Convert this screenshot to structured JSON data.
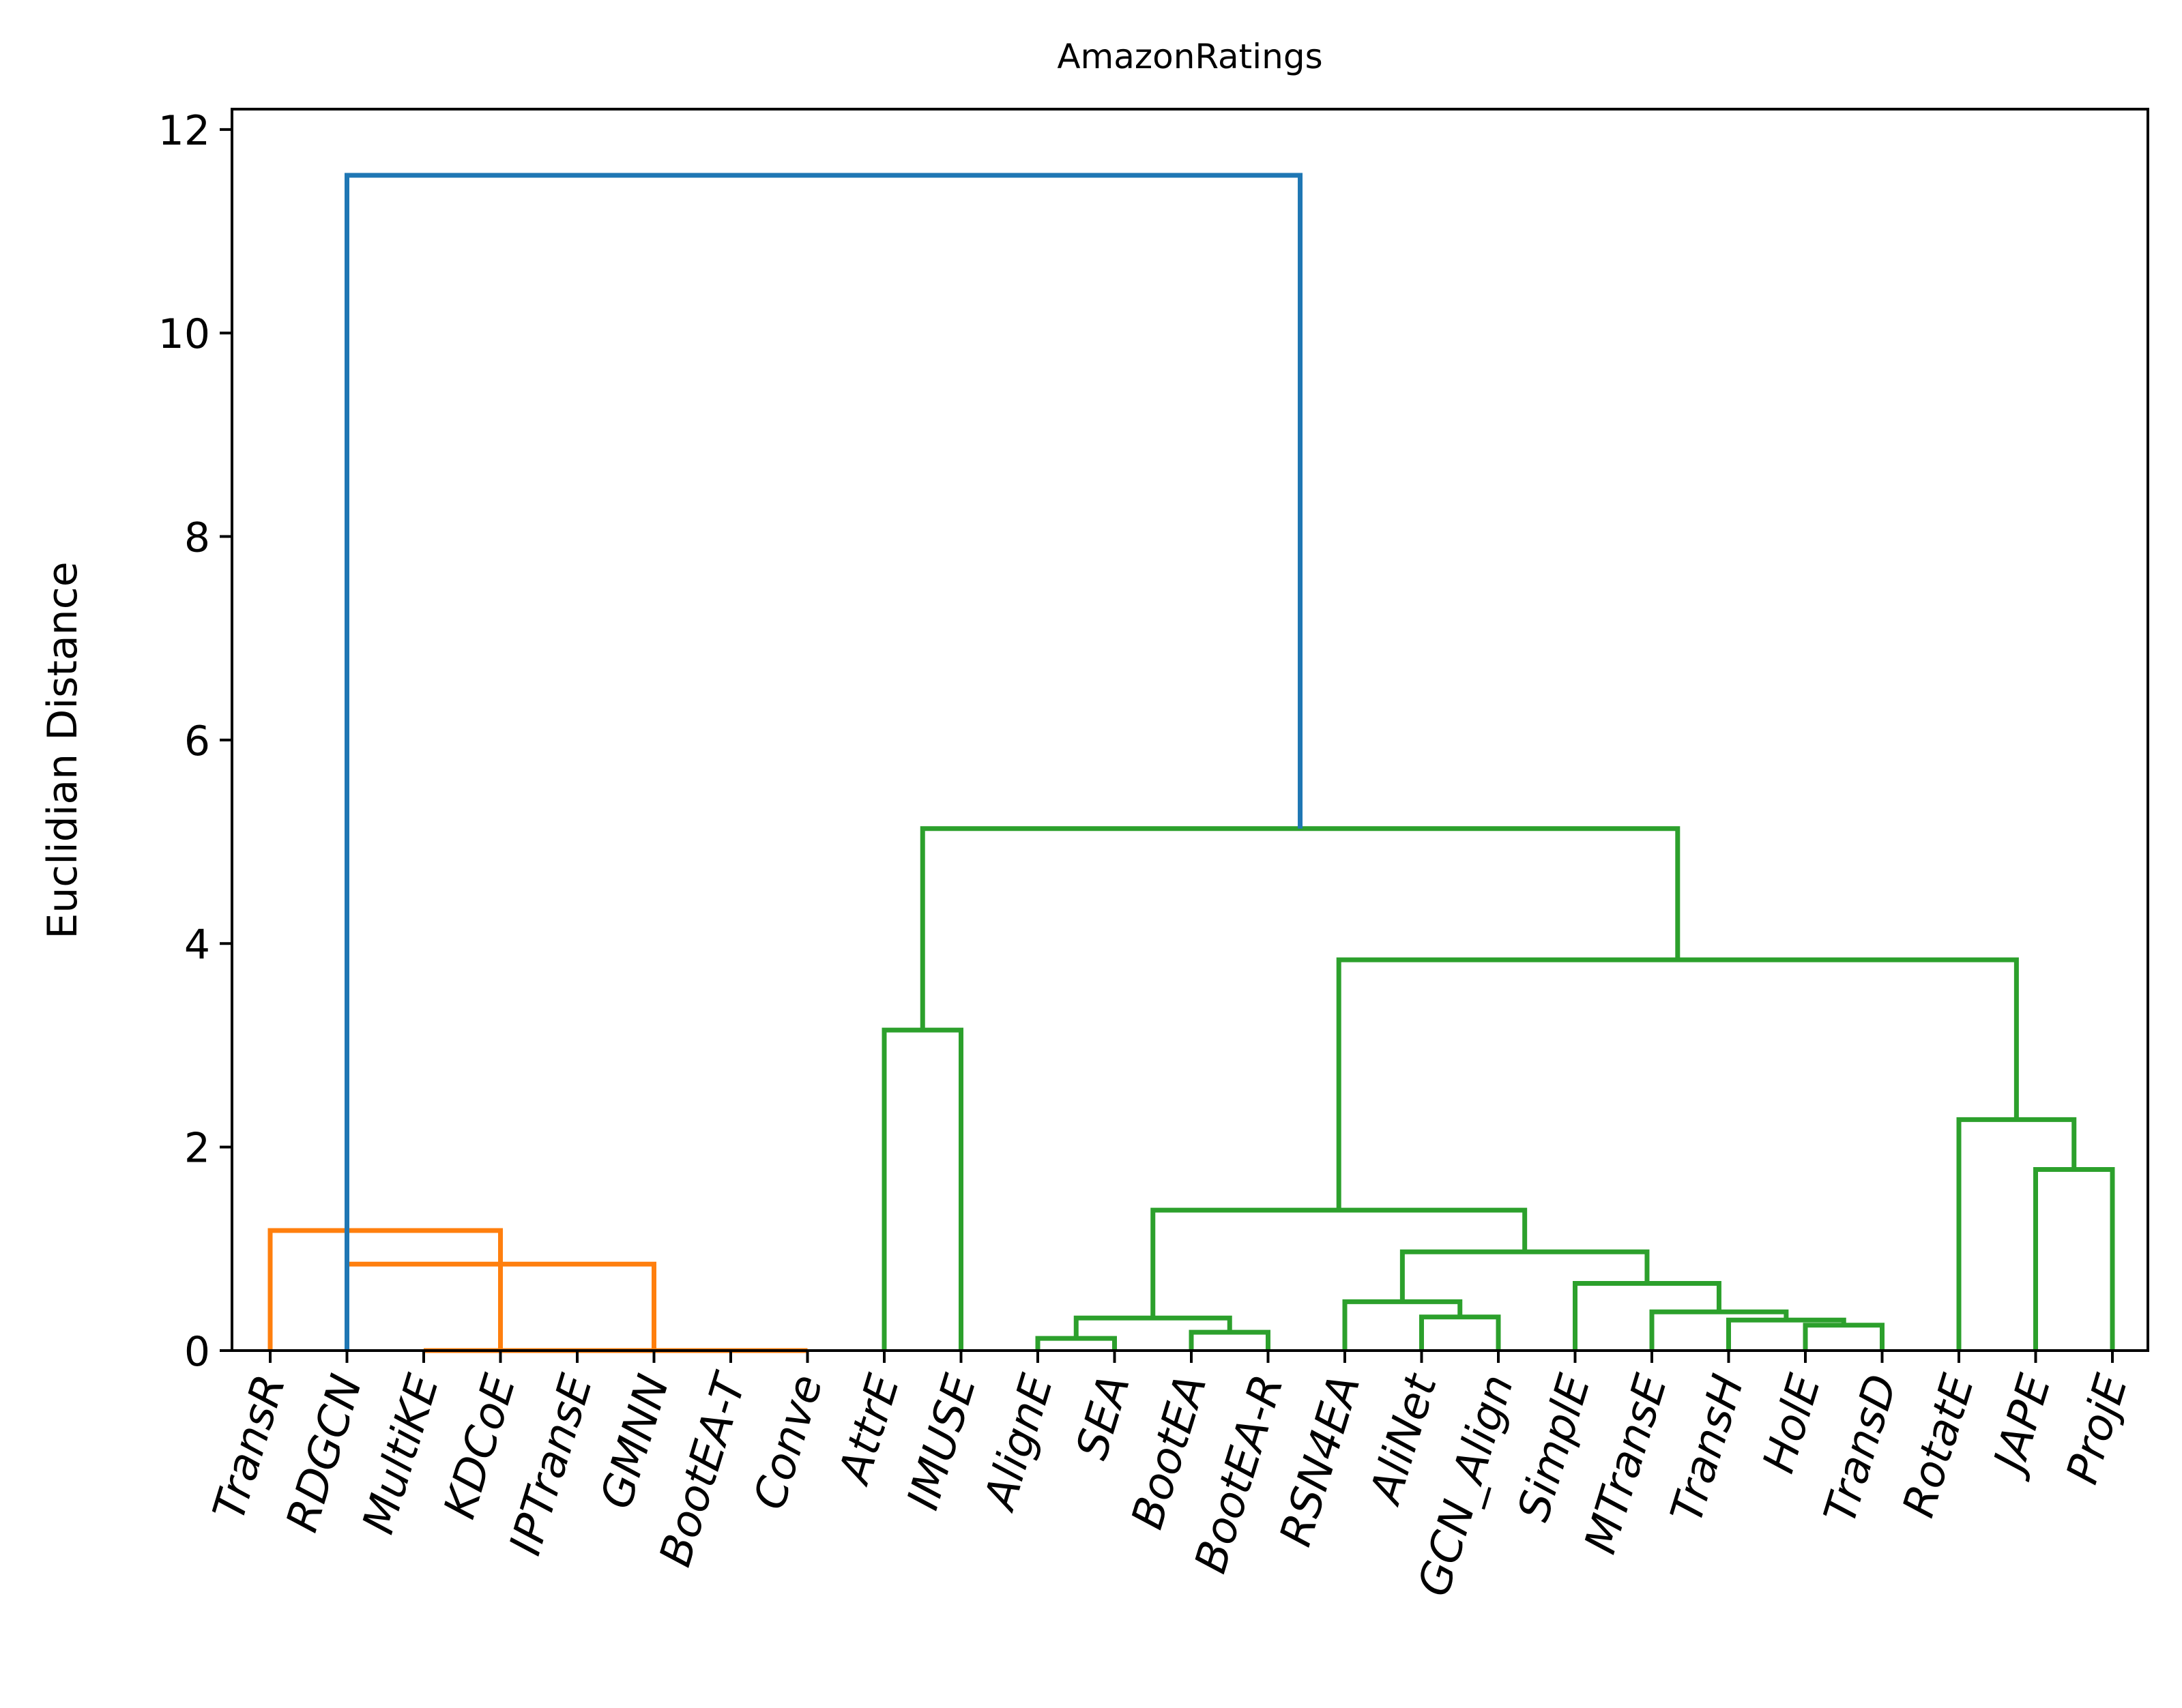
{
  "chart_data": {
    "type": "dendrogram",
    "title": "AmazonRatings",
    "xlabel": "",
    "ylabel": "Euclidian Distance",
    "ylim": [
      0,
      12.2
    ],
    "yticks": [
      0,
      2,
      4,
      6,
      8,
      10,
      12
    ],
    "grid": false,
    "leaves": [
      "TransR",
      "RDGCN",
      "MultiKE",
      "KDCoE",
      "IPTransE",
      "GMNN",
      "BootEA-T",
      "Conve",
      "AttrE",
      "IMUSE",
      "AlignE",
      "SEA",
      "BootEA",
      "BootEA-R",
      "RSN4EA",
      "AliNet",
      "GCN_Align",
      "SimplE",
      "MTransE",
      "TransH",
      "HolE",
      "TransD",
      "RotatE",
      "JAPE",
      "ProjE"
    ],
    "colors": {
      "root": "#1f77b4",
      "cluster1": "#ff7f0e",
      "cluster2": "#2ca02c"
    },
    "links": [
      {
        "left": 2,
        "right": 3,
        "height": 0.0,
        "color": "#ff7f0e"
      },
      {
        "left": 4,
        "right": 5,
        "height": 0.0,
        "color": "#ff7f0e"
      },
      {
        "left": 6,
        "right": 7,
        "height": 0.0,
        "color": "#ff7f0e"
      },
      {
        "left": 2.5,
        "right": 4.5,
        "height": 0.0,
        "color": "#ff7f0e"
      },
      {
        "left": 3.5,
        "right": 6.5,
        "height": 0.0,
        "color": "#ff7f0e"
      },
      {
        "left": 1,
        "right": 5.0,
        "height": 0.85,
        "color": "#ff7f0e"
      },
      {
        "left": 0,
        "right": 3.0,
        "height": 1.18,
        "color": "#ff7f0e"
      },
      {
        "left": 8,
        "right": 9,
        "height": 3.15,
        "color": "#2ca02c"
      },
      {
        "left": 10,
        "right": 11,
        "height": 0.12,
        "color": "#2ca02c"
      },
      {
        "left": 12,
        "right": 13,
        "height": 0.18,
        "color": "#2ca02c"
      },
      {
        "left": 10.5,
        "right": 12.5,
        "height": 0.32,
        "color": "#2ca02c"
      },
      {
        "left": 15,
        "right": 16,
        "height": 0.33,
        "color": "#2ca02c"
      },
      {
        "left": 14,
        "right": 15.5,
        "height": 0.48,
        "color": "#2ca02c"
      },
      {
        "left": 20,
        "right": 21,
        "height": 0.25,
        "color": "#2ca02c"
      },
      {
        "left": 19,
        "right": 20.5,
        "height": 0.3,
        "color": "#2ca02c"
      },
      {
        "left": 18,
        "right": 19.75,
        "height": 0.38,
        "color": "#2ca02c"
      },
      {
        "left": 17,
        "right": 18.875,
        "height": 0.66,
        "color": "#2ca02c"
      },
      {
        "left": 14.75,
        "right": 17.9375,
        "height": 0.97,
        "color": "#2ca02c"
      },
      {
        "left": 11.5,
        "right": 16.34375,
        "height": 1.38,
        "color": "#2ca02c"
      },
      {
        "left": 23,
        "right": 24,
        "height": 1.78,
        "color": "#2ca02c"
      },
      {
        "left": 22,
        "right": 23.5,
        "height": 2.27,
        "color": "#2ca02c"
      },
      {
        "left": 13.921875,
        "right": 22.75,
        "height": 3.84,
        "color": "#2ca02c"
      },
      {
        "left": 8.5,
        "right": 18.3359375,
        "height": 5.13,
        "color": "#2ca02c"
      },
      {
        "left": 1.0,
        "right": 13.41796875,
        "height": 11.55,
        "color": "#1f77b4"
      }
    ],
    "merge_points": [
      {
        "x": 2.5,
        "height": 0.0
      },
      {
        "x": 4.5,
        "height": 0.0
      },
      {
        "x": 6.5,
        "height": 0.0
      },
      {
        "x": 3.5,
        "height": 0.0
      },
      {
        "x": 5.0,
        "height": 0.0
      },
      {
        "x": 3.0,
        "height": 0.85
      },
      {
        "x": 1.0,
        "height": 1.18
      },
      {
        "x": 8.5,
        "height": 3.15
      },
      {
        "x": 10.5,
        "height": 0.12
      },
      {
        "x": 12.5,
        "height": 0.18
      },
      {
        "x": 11.5,
        "height": 0.32
      },
      {
        "x": 15.5,
        "height": 0.33
      },
      {
        "x": 14.75,
        "height": 0.48
      },
      {
        "x": 20.5,
        "height": 0.25
      },
      {
        "x": 19.75,
        "height": 0.3
      },
      {
        "x": 18.875,
        "height": 0.38
      },
      {
        "x": 17.9375,
        "height": 0.66
      },
      {
        "x": 16.34375,
        "height": 0.97
      },
      {
        "x": 13.921875,
        "height": 1.38
      },
      {
        "x": 23.5,
        "height": 1.78
      },
      {
        "x": 22.75,
        "height": 2.27
      },
      {
        "x": 18.3359375,
        "height": 3.84
      },
      {
        "x": 13.41796875,
        "height": 5.13
      },
      {
        "x": 7.208984375,
        "height": 11.55
      }
    ]
  }
}
